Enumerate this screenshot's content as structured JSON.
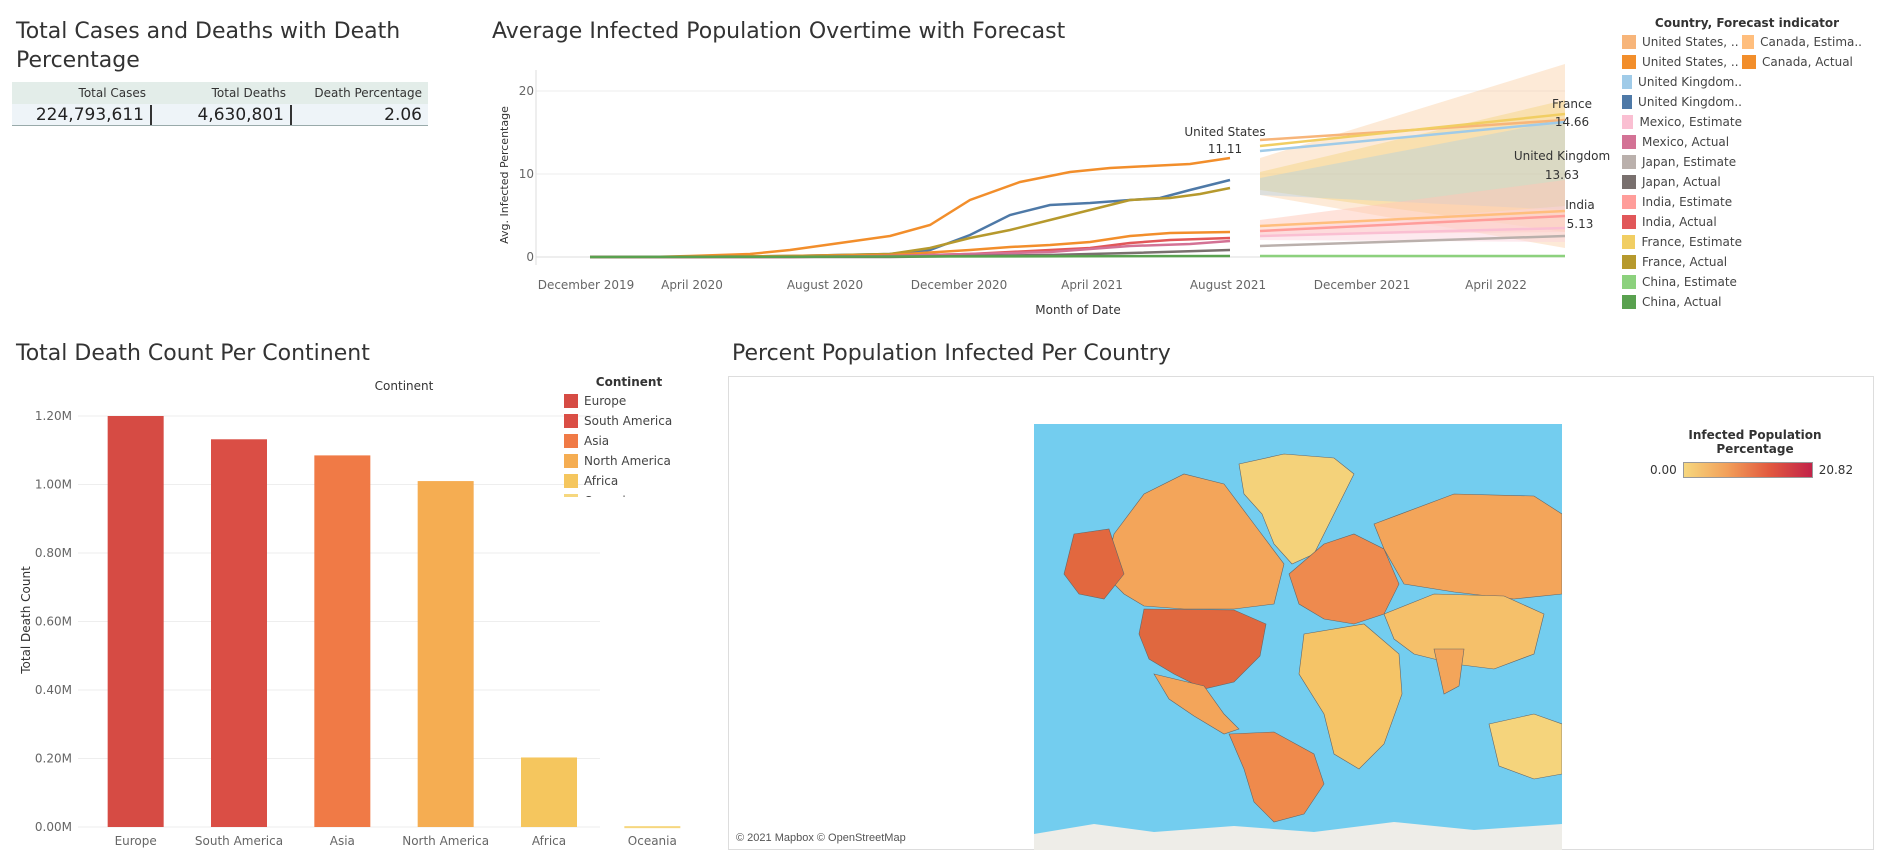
{
  "kpi": {
    "title": "Total Cases and Deaths with Death Percentage",
    "headers": [
      "Total Cases",
      "Total Deaths",
      "Death Percentage"
    ],
    "values": [
      "224,793,611",
      "4,630,801",
      "2.06"
    ]
  },
  "forecast_chart": {
    "title": "Average Infected Population Overtime with Forecast",
    "ylabel": "Avg. Infected Percentage",
    "xlabel": "Month of Date",
    "x_ticks": [
      "December 2019",
      "April 2020",
      "August 2020",
      "December 2020",
      "April 2021",
      "August 2021",
      "December 2021",
      "April 2022"
    ],
    "y_ticks": [
      "0",
      "10",
      "20"
    ],
    "annotations": [
      {
        "country": "United States",
        "value": "11.11"
      },
      {
        "country": "France",
        "value": "14.66"
      },
      {
        "country": "United Kingdom",
        "value": "13.63"
      },
      {
        "country": "India",
        "value": "5.13"
      }
    ]
  },
  "forecast_legend": {
    "title": "Country, Forecast indicator",
    "items_col1": [
      {
        "label": "United States, ..",
        "color": "#f7b57a"
      },
      {
        "label": "United States, ..",
        "color": "#f28e2b"
      },
      {
        "label": "United Kingdom..",
        "color": "#a0cbe8"
      },
      {
        "label": "United Kingdom..",
        "color": "#4e79a7"
      },
      {
        "label": "Mexico, Estimate",
        "color": "#fabfd2"
      },
      {
        "label": "Mexico, Actual",
        "color": "#d37295"
      },
      {
        "label": "Japan, Estimate",
        "color": "#bab0ac"
      },
      {
        "label": "Japan, Actual",
        "color": "#79706e"
      },
      {
        "label": "India, Estimate",
        "color": "#ff9d9a"
      },
      {
        "label": "India, Actual",
        "color": "#e15759"
      },
      {
        "label": "France, Estimate",
        "color": "#f1ce63"
      },
      {
        "label": "France, Actual",
        "color": "#b6992d"
      },
      {
        "label": "China, Estimate",
        "color": "#8cd17d"
      },
      {
        "label": "China, Actual",
        "color": "#59a14f"
      }
    ],
    "items_col2": [
      {
        "label": "Canada, Estima..",
        "color": "#ffbe7d"
      },
      {
        "label": "Canada, Actual",
        "color": "#f28e2b"
      }
    ]
  },
  "bar_chart": {
    "title": "Total Death Count Per Continent",
    "header": "Continent",
    "ylabel": "Total Death Count",
    "y_ticks": [
      "0.00M",
      "0.20M",
      "0.40M",
      "0.60M",
      "0.80M",
      "1.00M",
      "1.20M"
    ]
  },
  "continent_legend": {
    "title": "Continent",
    "items": [
      {
        "label": "Europe",
        "color": "#d64b44"
      },
      {
        "label": "South America",
        "color": "#da4e45"
      },
      {
        "label": "Asia",
        "color": "#f07a46"
      },
      {
        "label": "North America",
        "color": "#f5ad52"
      },
      {
        "label": "Africa",
        "color": "#f5c65e"
      },
      {
        "label": "Oceania",
        "color": "#f6d77e"
      }
    ]
  },
  "chart_data": {
    "type": "bar",
    "categories": [
      "Europe",
      "South America",
      "Asia",
      "North America",
      "Africa",
      "Oceania"
    ],
    "values": [
      1200000,
      1132000,
      1085000,
      1010000,
      203000,
      2500
    ],
    "colors": [
      "#d64b44",
      "#da4e45",
      "#f07a46",
      "#f5ad52",
      "#f5c65e",
      "#f6d77e"
    ],
    "title": "Total Death Count Per Continent",
    "ylabel": "Total Death Count",
    "ylim": [
      0,
      1260000
    ],
    "grid": true
  },
  "map": {
    "title": "Percent Population Infected Per Country",
    "legend_title": "Infected Population Percentage",
    "min_label": "0.00",
    "max_label": "20.82",
    "attribution": "© 2021 Mapbox © OpenStreetMap"
  }
}
